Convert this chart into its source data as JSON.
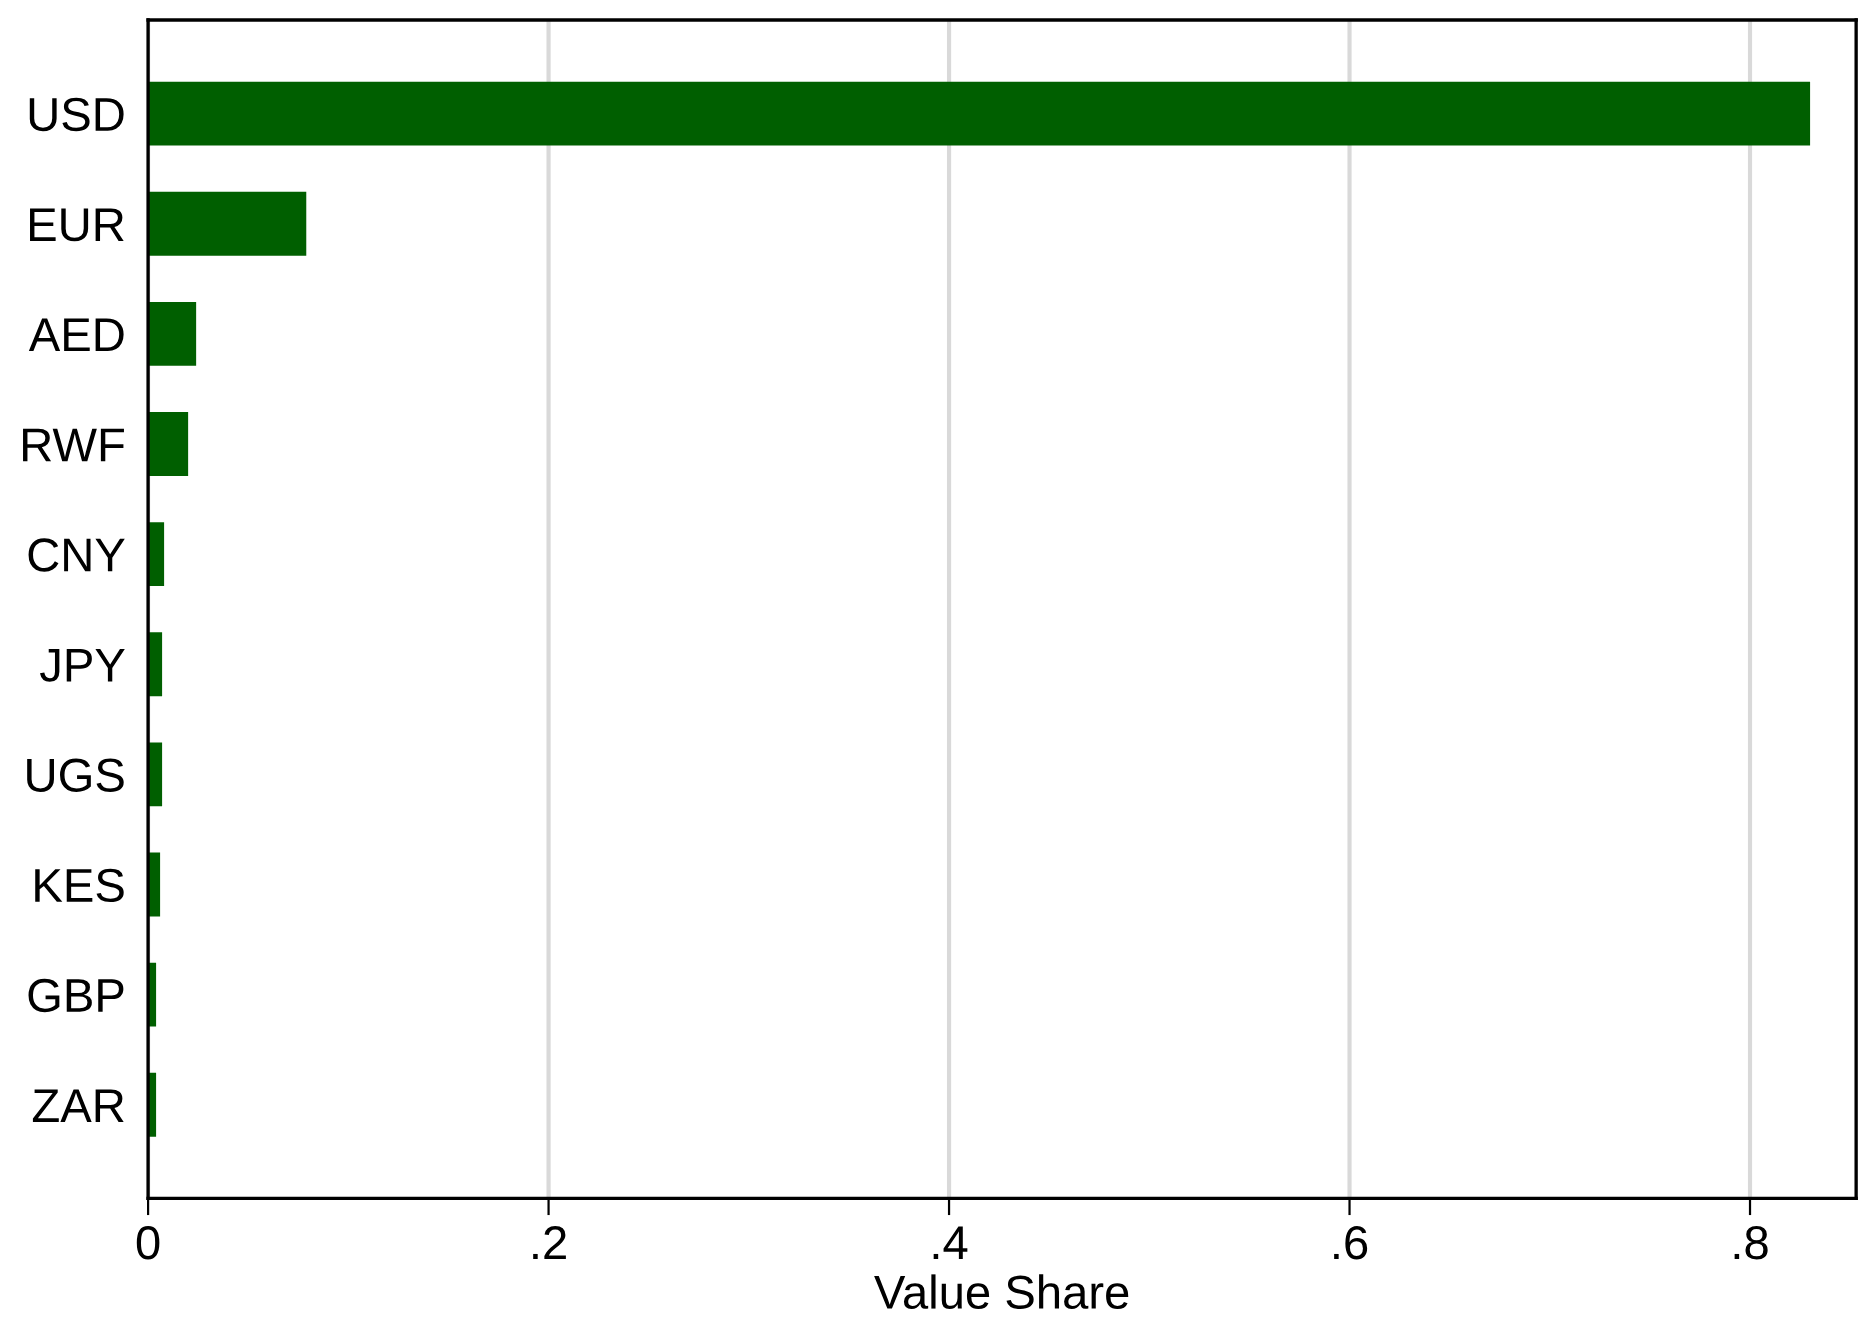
{
  "chart_data": {
    "type": "bar",
    "orientation": "horizontal",
    "xlabel": "Value Share",
    "categories": [
      "USD",
      "EUR",
      "AED",
      "RWF",
      "CNY",
      "JPY",
      "UGS",
      "KES",
      "GBP",
      "ZAR"
    ],
    "values": [
      0.83,
      0.079,
      0.024,
      0.02,
      0.008,
      0.007,
      0.007,
      0.006,
      0.004,
      0.004
    ],
    "color": "#005f00",
    "xlim": [
      0,
      0.853
    ],
    "xticks": [
      {
        "value": 0,
        "label": "0"
      },
      {
        "value": 0.2,
        "label": ".2"
      },
      {
        "value": 0.4,
        "label": ".4"
      },
      {
        "value": 0.6,
        "label": ".6"
      },
      {
        "value": 0.8,
        "label": ".8"
      }
    ],
    "grid": "x"
  }
}
